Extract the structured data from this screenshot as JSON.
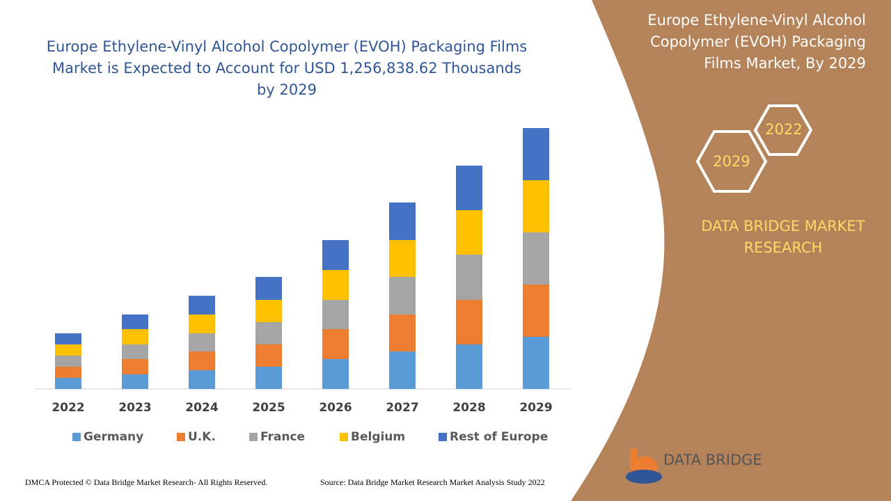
{
  "chart_data": {
    "type": "bar",
    "stacked": true,
    "title": "Europe Ethylene-Vinyl Alcohol Copolymer (EVOH) Packaging Films Market is Expected to Account for USD 1,256,838.62 Thousands by 2029",
    "categories": [
      "2022",
      "2023",
      "2024",
      "2025",
      "2026",
      "2027",
      "2028",
      "2029"
    ],
    "series": [
      {
        "name": "Germany",
        "color": "#5b9bd5",
        "values": [
          16,
          21,
          27,
          32,
          43,
          54,
          64,
          75
        ]
      },
      {
        "name": "U.K.",
        "color": "#ed7d31",
        "values": [
          16,
          22,
          27,
          32,
          43,
          53,
          64,
          75
        ]
      },
      {
        "name": "France",
        "color": "#a5a5a5",
        "values": [
          16,
          21,
          26,
          32,
          42,
          54,
          65,
          75
        ]
      },
      {
        "name": "Belgium",
        "color": "#ffc000",
        "values": [
          16,
          22,
          27,
          32,
          43,
          53,
          64,
          75
        ]
      },
      {
        "name": "Rest of Europe",
        "color": "#4472c4",
        "values": [
          16,
          21,
          27,
          33,
          43,
          54,
          64,
          75
        ]
      }
    ],
    "legend": "bottom"
  },
  "side_panel": {
    "title": "Europe Ethylene-Vinyl Alcohol Copolymer (EVOH) Packaging Films Market, By 2029",
    "hex_labels": [
      "2022",
      "2029"
    ],
    "brand": "DATA BRIDGE MARKET RESEARCH"
  },
  "logo_text": "DATA BRIDGE",
  "footer": {
    "left": "DMCA Protected © Data Bridge Market Research- All Rights Reserved.",
    "right": "Source: Data Bridge Market Research Market Analysis Study 2022"
  }
}
